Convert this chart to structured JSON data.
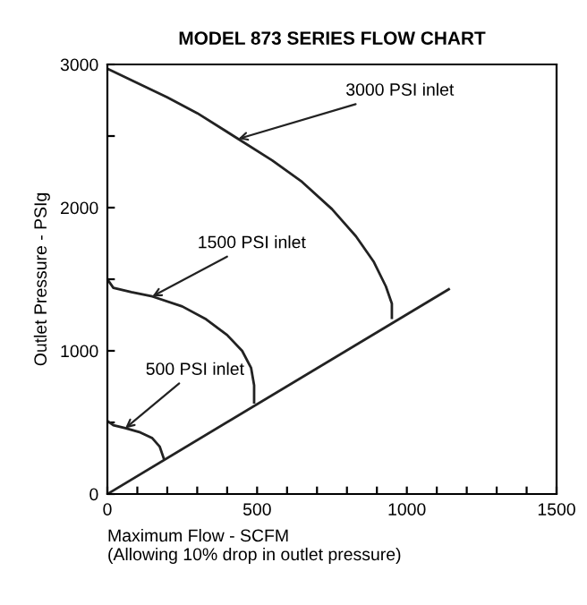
{
  "chart_data": {
    "type": "line",
    "title": "MODEL 873 SERIES FLOW CHART",
    "xlabel": "Maximum Flow - SCFM\n(Allowing 10% drop in outlet pressure)",
    "ylabel": "Outlet Pressure - PSIg",
    "series": [
      {
        "color": "#222222",
        "x": [
          0,
          100,
          200,
          300,
          437,
          550,
          650,
          750,
          830,
          890,
          930,
          950,
          950
        ],
        "values": [
          2970,
          2870,
          2770,
          2660,
          2480,
          2330,
          2180,
          1990,
          1800,
          1620,
          1450,
          1330,
          1230
        ]
      },
      {
        "color": "#222222",
        "x": [
          0,
          20,
          80,
          150,
          250,
          330,
          400,
          450,
          480,
          490,
          490
        ],
        "values": [
          1500,
          1440,
          1410,
          1380,
          1310,
          1220,
          1110,
          1000,
          880,
          760,
          640
        ]
      },
      {
        "color": "#222222",
        "x": [
          0,
          20,
          60,
          110,
          150,
          175,
          188
        ],
        "values": [
          510,
          480,
          460,
          430,
          390,
          330,
          250
        ]
      },
      {
        "color": "#222222",
        "x": [
          0,
          1140
        ],
        "values": [
          0,
          1430
        ]
      }
    ],
    "annotations": [
      {
        "text": "3000 PSI inlet",
        "x": 437,
        "y": 2480
      },
      {
        "text": "1500 PSI inlet",
        "x": 150,
        "y": 1380
      },
      {
        "text": "500 PSI inlet",
        "x": 60,
        "y": 460
      }
    ],
    "xlim": [
      0,
      1500
    ],
    "ylim": [
      0,
      3000
    ],
    "xticks": [
      0,
      {
        "value": 100,
        "label": null
      },
      {
        "value": 200,
        "label": null
      },
      {
        "value": 300,
        "label": null
      },
      {
        "value": 400,
        "label": null
      },
      500,
      {
        "value": 600,
        "label": null
      },
      {
        "value": 700,
        "label": null
      },
      {
        "value": 800,
        "label": null
      },
      {
        "value": 900,
        "label": null
      },
      1000,
      {
        "value": 1100,
        "label": null
      },
      {
        "value": 1200,
        "label": null
      },
      {
        "value": 1300,
        "label": null
      },
      {
        "value": 1400,
        "label": null
      },
      1500
    ],
    "yticks": [
      0,
      {
        "value": 500,
        "label": null
      },
      1000,
      {
        "value": 1500,
        "label": null
      },
      2000,
      {
        "value": 2500,
        "label": null
      },
      3000
    ],
    "grid": false,
    "legend": false,
    "marker": "none",
    "line_style": "solid"
  }
}
